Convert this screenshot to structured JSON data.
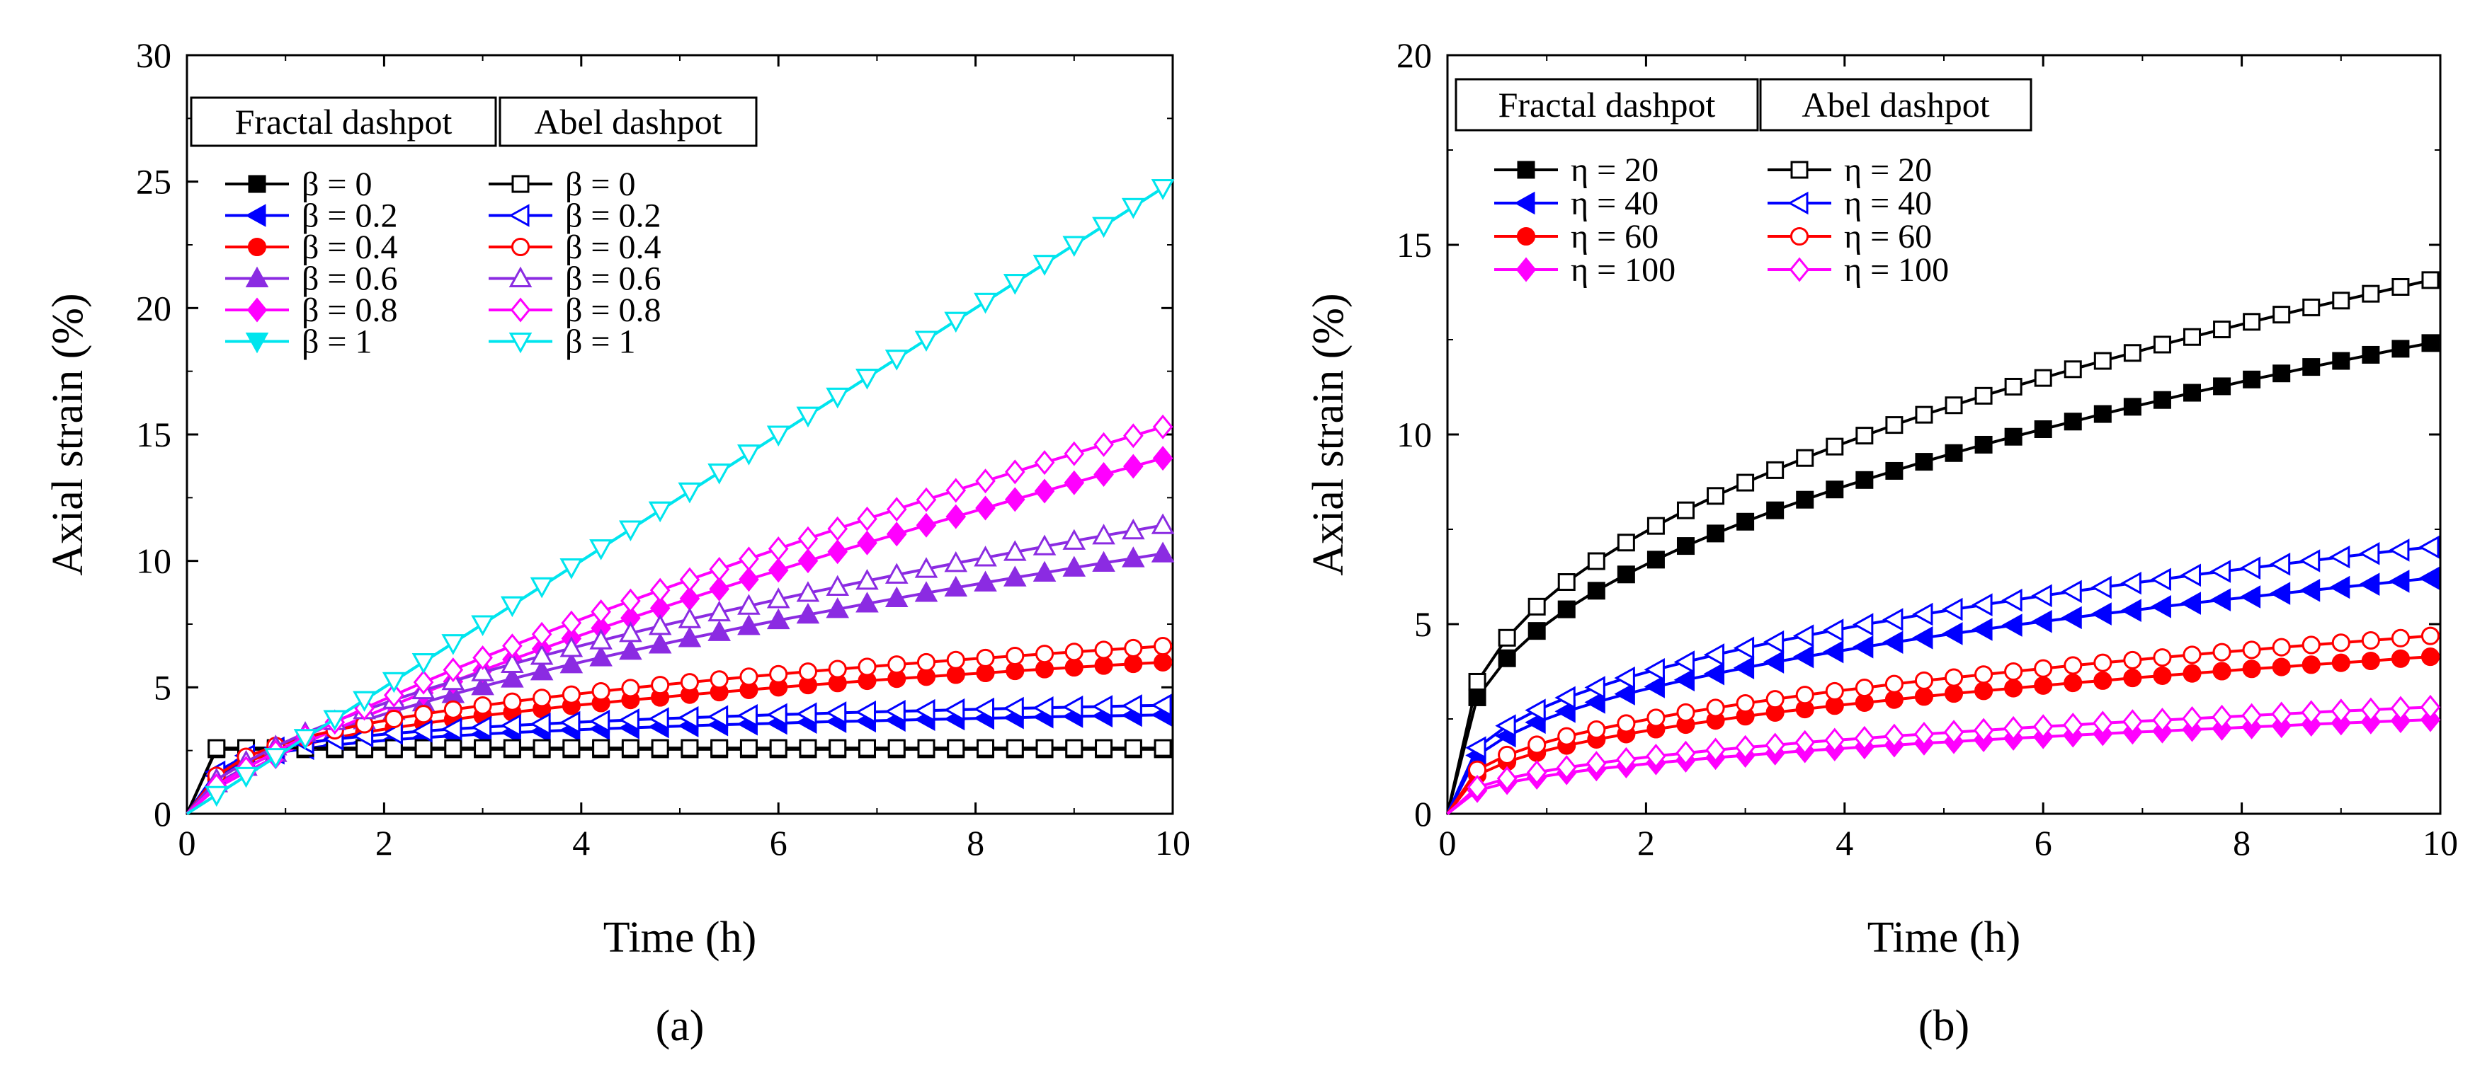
{
  "chart_data": [
    {
      "type": "line",
      "panel_label": "(a)",
      "xlabel": "Time (h)",
      "ylabel": "Axial strain (%)",
      "xlim": [
        0,
        10
      ],
      "ylim": [
        0,
        30
      ],
      "xticks": [
        "0",
        "2",
        "4",
        "6",
        "8",
        "10"
      ],
      "yticks": [
        "0",
        "5",
        "10",
        "15",
        "20",
        "25",
        "30"
      ],
      "legend_headers": [
        "Fractal dashpot",
        "Abel dashpot"
      ],
      "legend_placement": "top-left",
      "grid": false,
      "x": [
        0,
        0.3,
        0.6,
        0.9,
        1.2,
        1.5,
        1.8,
        2.1,
        2.4,
        2.7,
        3.0,
        3.3,
        3.6,
        3.9,
        4.2,
        4.5,
        4.8,
        5.1,
        5.4,
        5.7,
        6.0,
        6.3,
        6.6,
        6.9,
        7.2,
        7.5,
        7.8,
        8.1,
        8.4,
        8.7,
        9.0,
        9.3,
        9.6,
        9.9
      ],
      "series": [
        {
          "name": "β = 0",
          "group": "Fractal dashpot",
          "color": "#000000",
          "marker": "square",
          "filled": true,
          "values": [
            0,
            2.55,
            2.55,
            2.55,
            2.55,
            2.55,
            2.55,
            2.55,
            2.55,
            2.55,
            2.55,
            2.55,
            2.55,
            2.55,
            2.55,
            2.55,
            2.55,
            2.55,
            2.55,
            2.55,
            2.55,
            2.55,
            2.55,
            2.55,
            2.55,
            2.55,
            2.55,
            2.55,
            2.55,
            2.55,
            2.55,
            2.55,
            2.55,
            2.55
          ]
        },
        {
          "name": "β = 0.2",
          "group": "Fractal dashpot",
          "color": "#0000ff",
          "marker": "triangle-left",
          "filled": true,
          "values": [
            0,
            1.5,
            2.12,
            2.4,
            2.58,
            2.72,
            2.83,
            2.93,
            3.01,
            3.08,
            3.15,
            3.21,
            3.26,
            3.31,
            3.36,
            3.4,
            3.44,
            3.48,
            3.52,
            3.55,
            3.58,
            3.62,
            3.65,
            3.67,
            3.7,
            3.73,
            3.75,
            3.78,
            3.8,
            3.83,
            3.85,
            3.87,
            3.89,
            3.91
          ]
        },
        {
          "name": "β = 0.4",
          "group": "Fractal dashpot",
          "color": "#ff0000",
          "marker": "circle",
          "filled": true,
          "values": [
            0,
            1.35,
            2.05,
            2.45,
            2.75,
            3.0,
            3.22,
            3.4,
            3.57,
            3.73,
            3.88,
            4.01,
            4.14,
            4.27,
            4.38,
            4.5,
            4.6,
            4.71,
            4.81,
            4.9,
            5.0,
            5.09,
            5.17,
            5.26,
            5.34,
            5.42,
            5.5,
            5.57,
            5.65,
            5.72,
            5.79,
            5.86,
            5.93,
            5.99
          ]
        },
        {
          "name": "β = 0.6",
          "group": "Fractal dashpot",
          "color": "#8b2be2",
          "marker": "triangle-up",
          "filled": true,
          "values": [
            0,
            1.2,
            1.85,
            2.4,
            2.88,
            3.3,
            3.69,
            4.06,
            4.4,
            4.73,
            5.04,
            5.34,
            5.63,
            5.91,
            6.18,
            6.44,
            6.69,
            6.94,
            7.18,
            7.42,
            7.65,
            7.87,
            8.09,
            8.31,
            8.52,
            8.73,
            8.94,
            9.14,
            9.34,
            9.53,
            9.73,
            9.92,
            10.1,
            10.29
          ]
        },
        {
          "name": "β = 0.8",
          "group": "Fractal dashpot",
          "color": "#ff00ff",
          "marker": "diamond",
          "filled": true,
          "values": [
            0,
            1.02,
            1.65,
            2.25,
            2.8,
            3.33,
            3.83,
            4.31,
            4.78,
            5.23,
            5.67,
            6.1,
            6.52,
            6.93,
            7.34,
            7.74,
            8.13,
            8.51,
            8.89,
            9.27,
            9.63,
            10.0,
            10.36,
            10.71,
            11.06,
            11.41,
            11.75,
            12.09,
            12.43,
            12.76,
            13.09,
            13.42,
            13.74,
            14.06
          ]
        },
        {
          "name": "β = 1",
          "group": "Fractal dashpot",
          "color": "#00e5ee",
          "marker": "triangle-down",
          "filled": true,
          "values": [
            0,
            0.75,
            1.5,
            2.25,
            3.0,
            3.75,
            4.5,
            5.25,
            6.0,
            6.75,
            7.5,
            8.25,
            9.0,
            9.75,
            10.5,
            11.25,
            12.0,
            12.75,
            13.5,
            14.25,
            15.0,
            15.75,
            16.5,
            17.25,
            18.0,
            18.75,
            19.5,
            20.25,
            21.0,
            21.75,
            22.5,
            23.25,
            24.0,
            24.75
          ]
        },
        {
          "name": "β = 0",
          "group": "Abel dashpot",
          "color": "#000000",
          "marker": "square",
          "filled": false,
          "values": [
            0,
            2.6,
            2.6,
            2.6,
            2.6,
            2.6,
            2.6,
            2.6,
            2.6,
            2.6,
            2.6,
            2.6,
            2.6,
            2.6,
            2.6,
            2.6,
            2.6,
            2.6,
            2.6,
            2.6,
            2.6,
            2.6,
            2.6,
            2.6,
            2.6,
            2.6,
            2.6,
            2.6,
            2.6,
            2.6,
            2.6,
            2.6,
            2.6,
            2.6
          ]
        },
        {
          "name": "β = 0.2",
          "group": "Abel dashpot",
          "color": "#0000ff",
          "marker": "triangle-left",
          "filled": false,
          "values": [
            0,
            1.65,
            2.3,
            2.6,
            2.8,
            2.95,
            3.07,
            3.18,
            3.27,
            3.35,
            3.42,
            3.49,
            3.55,
            3.61,
            3.66,
            3.71,
            3.76,
            3.8,
            3.84,
            3.88,
            3.92,
            3.95,
            3.99,
            4.02,
            4.05,
            4.08,
            4.11,
            4.14,
            4.17,
            4.19,
            4.22,
            4.24,
            4.27,
            4.29
          ]
        },
        {
          "name": "β = 0.4",
          "group": "Abel dashpot",
          "color": "#ff0000",
          "marker": "circle",
          "filled": false,
          "values": [
            0,
            1.5,
            2.25,
            2.68,
            3.02,
            3.3,
            3.54,
            3.75,
            3.94,
            4.12,
            4.28,
            4.43,
            4.58,
            4.71,
            4.84,
            4.97,
            5.09,
            5.2,
            5.31,
            5.42,
            5.52,
            5.62,
            5.72,
            5.81,
            5.9,
            5.99,
            6.08,
            6.16,
            6.24,
            6.32,
            6.4,
            6.48,
            6.55,
            6.63
          ]
        },
        {
          "name": "β = 0.6",
          "group": "Abel dashpot",
          "color": "#8b2be2",
          "marker": "triangle-up",
          "filled": false,
          "values": [
            0,
            1.35,
            2.05,
            2.66,
            3.19,
            3.66,
            4.09,
            4.5,
            4.88,
            5.24,
            5.59,
            5.92,
            6.24,
            6.55,
            6.85,
            7.14,
            7.42,
            7.69,
            7.96,
            8.22,
            8.48,
            8.73,
            8.97,
            9.21,
            9.45,
            9.68,
            9.91,
            10.13,
            10.35,
            10.57,
            10.79,
            11.0,
            11.2,
            11.41
          ]
        },
        {
          "name": "β = 0.8",
          "group": "Abel dashpot",
          "color": "#ff00ff",
          "marker": "diamond",
          "filled": false,
          "values": [
            0,
            1.12,
            1.8,
            2.45,
            3.05,
            3.62,
            4.17,
            4.69,
            5.2,
            5.69,
            6.17,
            6.64,
            7.1,
            7.55,
            7.99,
            8.42,
            8.84,
            9.26,
            9.67,
            10.08,
            10.48,
            10.88,
            11.27,
            11.66,
            12.04,
            12.42,
            12.79,
            13.16,
            13.52,
            13.89,
            14.24,
            14.6,
            14.95,
            15.3
          ]
        },
        {
          "name": "β = 1",
          "group": "Abel dashpot",
          "color": "#00e5ee",
          "marker": "triangle-down",
          "filled": false,
          "values": [
            0,
            0.75,
            1.5,
            2.25,
            3.0,
            3.75,
            4.5,
            5.25,
            6.0,
            6.75,
            7.5,
            8.25,
            9.0,
            9.75,
            10.5,
            11.25,
            12.0,
            12.75,
            13.5,
            14.25,
            15.0,
            15.75,
            16.5,
            17.25,
            18.0,
            18.75,
            19.5,
            20.25,
            21.0,
            21.75,
            22.5,
            23.25,
            24.0,
            24.75
          ]
        }
      ]
    },
    {
      "type": "line",
      "panel_label": "(b)",
      "xlabel": "Time (h)",
      "ylabel": "Axial strain (%)",
      "xlim": [
        0,
        10
      ],
      "ylim": [
        0,
        20
      ],
      "xticks": [
        "0",
        "2",
        "4",
        "6",
        "8",
        "10"
      ],
      "yticks": [
        "0",
        "5",
        "10",
        "15",
        "20"
      ],
      "legend_headers": [
        "Fractal dashpot",
        "Abel dashpot"
      ],
      "legend_placement": "top-left",
      "grid": false,
      "x": [
        0,
        0.3,
        0.6,
        0.9,
        1.2,
        1.5,
        1.8,
        2.1,
        2.4,
        2.7,
        3.0,
        3.3,
        3.6,
        3.9,
        4.2,
        4.5,
        4.8,
        5.1,
        5.4,
        5.7,
        6.0,
        6.3,
        6.6,
        6.9,
        7.2,
        7.5,
        7.8,
        8.1,
        8.4,
        8.7,
        9.0,
        9.3,
        9.6,
        9.9
      ],
      "series": [
        {
          "name": "η = 20",
          "group": "Fractal dashpot",
          "color": "#000000",
          "marker": "square",
          "filled": true,
          "values": [
            0,
            3.07,
            4.1,
            4.82,
            5.39,
            5.88,
            6.31,
            6.7,
            7.06,
            7.39,
            7.7,
            8.0,
            8.28,
            8.55,
            8.8,
            9.04,
            9.28,
            9.51,
            9.73,
            9.94,
            10.14,
            10.34,
            10.54,
            10.73,
            10.91,
            11.1,
            11.27,
            11.45,
            11.61,
            11.78,
            11.94,
            12.1,
            12.26,
            12.41
          ]
        },
        {
          "name": "η = 40",
          "group": "Fractal dashpot",
          "color": "#0000ff",
          "marker": "triangle-left",
          "filled": true,
          "values": [
            0,
            1.54,
            2.05,
            2.41,
            2.7,
            2.94,
            3.16,
            3.35,
            3.53,
            3.69,
            3.85,
            4.0,
            4.14,
            4.27,
            4.4,
            4.52,
            4.64,
            4.75,
            4.86,
            4.97,
            5.07,
            5.17,
            5.27,
            5.36,
            5.46,
            5.55,
            5.64,
            5.72,
            5.81,
            5.89,
            5.97,
            6.05,
            6.13,
            6.21
          ]
        },
        {
          "name": "η = 60",
          "group": "Fractal dashpot",
          "color": "#ff0000",
          "marker": "circle",
          "filled": true,
          "values": [
            0,
            1.02,
            1.37,
            1.61,
            1.8,
            1.96,
            2.1,
            2.23,
            2.35,
            2.46,
            2.57,
            2.67,
            2.76,
            2.85,
            2.93,
            3.01,
            3.09,
            3.17,
            3.24,
            3.31,
            3.38,
            3.45,
            3.51,
            3.58,
            3.64,
            3.7,
            3.76,
            3.82,
            3.87,
            3.93,
            3.98,
            4.03,
            4.09,
            4.14
          ]
        },
        {
          "name": "η = 100",
          "group": "Fractal dashpot",
          "color": "#ff00ff",
          "marker": "diamond",
          "filled": true,
          "values": [
            0,
            0.61,
            0.82,
            0.96,
            1.08,
            1.18,
            1.26,
            1.34,
            1.41,
            1.48,
            1.54,
            1.6,
            1.66,
            1.71,
            1.76,
            1.81,
            1.86,
            1.9,
            1.95,
            1.99,
            2.03,
            2.07,
            2.11,
            2.15,
            2.18,
            2.22,
            2.25,
            2.29,
            2.32,
            2.36,
            2.39,
            2.42,
            2.45,
            2.48
          ]
        },
        {
          "name": "η = 20",
          "group": "Abel dashpot",
          "color": "#000000",
          "marker": "square",
          "filled": false,
          "values": [
            0,
            3.48,
            4.64,
            5.46,
            6.11,
            6.66,
            7.15,
            7.59,
            8.0,
            8.38,
            8.73,
            9.06,
            9.38,
            9.68,
            9.97,
            10.25,
            10.52,
            10.77,
            11.02,
            11.26,
            11.49,
            11.72,
            11.94,
            12.15,
            12.37,
            12.57,
            12.77,
            12.97,
            13.16,
            13.35,
            13.53,
            13.71,
            13.89,
            14.07
          ]
        },
        {
          "name": "η = 40",
          "group": "Abel dashpot",
          "color": "#0000ff",
          "marker": "triangle-left",
          "filled": false,
          "values": [
            0,
            1.74,
            2.32,
            2.73,
            3.06,
            3.33,
            3.58,
            3.8,
            4.0,
            4.19,
            4.37,
            4.53,
            4.69,
            4.84,
            4.99,
            5.12,
            5.26,
            5.39,
            5.51,
            5.63,
            5.75,
            5.86,
            5.97,
            6.08,
            6.18,
            6.29,
            6.39,
            6.48,
            6.58,
            6.67,
            6.77,
            6.86,
            6.95,
            7.03
          ]
        },
        {
          "name": "η = 60",
          "group": "Abel dashpot",
          "color": "#ff0000",
          "marker": "circle",
          "filled": false,
          "values": [
            0,
            1.16,
            1.55,
            1.82,
            2.04,
            2.22,
            2.38,
            2.53,
            2.67,
            2.79,
            2.91,
            3.02,
            3.13,
            3.23,
            3.32,
            3.42,
            3.51,
            3.59,
            3.67,
            3.75,
            3.83,
            3.91,
            3.98,
            4.05,
            4.12,
            4.19,
            4.26,
            4.32,
            4.39,
            4.45,
            4.51,
            4.57,
            4.63,
            4.69
          ]
        },
        {
          "name": "η = 100",
          "group": "Abel dashpot",
          "color": "#ff00ff",
          "marker": "diamond",
          "filled": false,
          "values": [
            0,
            0.7,
            0.93,
            1.09,
            1.22,
            1.33,
            1.43,
            1.52,
            1.6,
            1.68,
            1.75,
            1.81,
            1.88,
            1.94,
            1.99,
            2.05,
            2.1,
            2.15,
            2.2,
            2.25,
            2.3,
            2.34,
            2.39,
            2.43,
            2.47,
            2.51,
            2.55,
            2.59,
            2.63,
            2.67,
            2.71,
            2.74,
            2.78,
            2.81
          ]
        }
      ]
    }
  ]
}
